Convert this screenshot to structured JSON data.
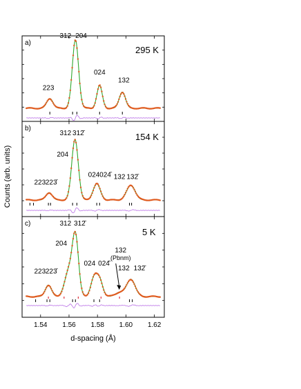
{
  "figure": {
    "ylabel": "Counts (arb. units)",
    "xlabel": "d-spacing (Å)",
    "xlim": [
      1.527,
      1.627
    ],
    "xticks": [
      "1.54",
      "1.56",
      "1.58",
      "1.60",
      "1.62"
    ],
    "colors": {
      "observed": "#e05a1e",
      "calculated": "#2fa82f",
      "difference": "#b86de6",
      "reflection_marks": "#000000",
      "pbnm_marks": "#e0303a",
      "frame": "#000000"
    }
  },
  "chart_data": [
    {
      "type": "line",
      "panel": "a)",
      "temperature": "295 K",
      "xlim": [
        1.527,
        1.627
      ],
      "ylim": [
        0,
        100
      ],
      "series": [
        {
          "role": "observed",
          "x": [],
          "y": []
        },
        {
          "role": "calculated",
          "x": [],
          "y": []
        }
      ],
      "peaks": [
        {
          "d": 1.5465,
          "height": 12,
          "width": 0.0022
        },
        {
          "d": 1.5645,
          "height": 84,
          "width": 0.0022
        },
        {
          "d": 1.5815,
          "height": 28,
          "width": 0.0019
        },
        {
          "d": 1.5975,
          "height": 20,
          "width": 0.0022
        }
      ],
      "baseline": 4,
      "reflection_ticks": [
        1.5465,
        1.5625,
        1.5655,
        1.5815,
        1.5975
      ],
      "labels": [
        {
          "text": "223",
          "d": 1.5455,
          "y": 24
        },
        {
          "text": "312",
          "d": 1.5575,
          "y": 92
        },
        {
          "text": "204",
          "d": 1.5685,
          "y": 92
        },
        {
          "text": "024",
          "d": 1.5815,
          "y": 44
        },
        {
          "text": "132",
          "d": 1.5985,
          "y": 34
        }
      ]
    },
    {
      "type": "line",
      "panel": "b)",
      "temperature": "154 K",
      "xlim": [
        1.527,
        1.627
      ],
      "ylim": [
        0,
        100
      ],
      "series": [
        {
          "role": "observed",
          "x": [],
          "y": []
        },
        {
          "role": "calculated",
          "x": [],
          "y": []
        }
      ],
      "peaks": [
        {
          "d": 1.546,
          "height": 10,
          "width": 0.0022
        },
        {
          "d": 1.5642,
          "height": 82,
          "width": 0.0023
        },
        {
          "d": 1.5795,
          "height": 22,
          "width": 0.0025
        },
        {
          "d": 1.6035,
          "height": 20,
          "width": 0.003
        }
      ],
      "baseline": 4,
      "reflection_ticks": [
        1.5325,
        1.535,
        1.5455,
        1.547,
        1.5625,
        1.5655,
        1.5795,
        1.5815,
        1.6025,
        1.604
      ],
      "labels": [
        {
          "text": "223",
          "d": 1.5395,
          "y": 22
        },
        {
          "text": "223̄",
          "d": 1.5475,
          "y": 22
        },
        {
          "text": "312",
          "d": 1.5575,
          "y": 92
        },
        {
          "text": "312̄",
          "d": 1.5665,
          "y": 92
        },
        {
          "text": "204",
          "d": 1.5555,
          "y": 62
        },
        {
          "text": "024",
          "d": 1.5775,
          "y": 33
        },
        {
          "text": "024̄",
          "d": 1.5855,
          "y": 33
        },
        {
          "text": "132",
          "d": 1.5955,
          "y": 30
        },
        {
          "text": "132̄",
          "d": 1.6045,
          "y": 30
        }
      ]
    },
    {
      "type": "line",
      "panel": "c)",
      "temperature": "5 K",
      "xlim": [
        1.527,
        1.627
      ],
      "ylim": [
        0,
        100
      ],
      "series": [
        {
          "role": "observed",
          "x": [],
          "y": []
        },
        {
          "role": "calculated",
          "x": [],
          "y": []
        }
      ],
      "peaks": [
        {
          "d": 1.5455,
          "height": 14,
          "width": 0.0022
        },
        {
          "d": 1.5597,
          "height": 30,
          "width": 0.0028
        },
        {
          "d": 1.5645,
          "height": 72,
          "width": 0.0022
        },
        {
          "d": 1.5775,
          "height": 22,
          "width": 0.0022
        },
        {
          "d": 1.5815,
          "height": 20,
          "width": 0.0022
        },
        {
          "d": 1.5955,
          "height": 5,
          "width": 0.003
        },
        {
          "d": 1.6035,
          "height": 21,
          "width": 0.003
        }
      ],
      "baseline": 4,
      "reflection_ticks": [
        1.5365,
        1.5445,
        1.5465,
        1.5625,
        1.5645,
        1.5775,
        1.5815,
        1.6025,
        1.6045
      ],
      "pbnm_ticks": [
        1.5455,
        1.5565,
        1.5665,
        1.5825,
        1.5955
      ],
      "labels": [
        {
          "text": "223",
          "d": 1.5395,
          "y": 30
        },
        {
          "text": "223̄",
          "d": 1.5475,
          "y": 30
        },
        {
          "text": "312",
          "d": 1.5575,
          "y": 92
        },
        {
          "text": "312̄",
          "d": 1.5675,
          "y": 92
        },
        {
          "text": "204",
          "d": 1.5545,
          "y": 66
        },
        {
          "text": "024",
          "d": 1.5745,
          "y": 40
        },
        {
          "text": "024̄",
          "d": 1.5845,
          "y": 40
        },
        {
          "text": "132",
          "d": 1.5985,
          "y": 34
        },
        {
          "text": "132̄",
          "d": 1.6095,
          "y": 34
        }
      ],
      "annotation": {
        "lines": [
          "132",
          "(Pbnm)"
        ],
        "target_d": 1.5958
      }
    }
  ]
}
